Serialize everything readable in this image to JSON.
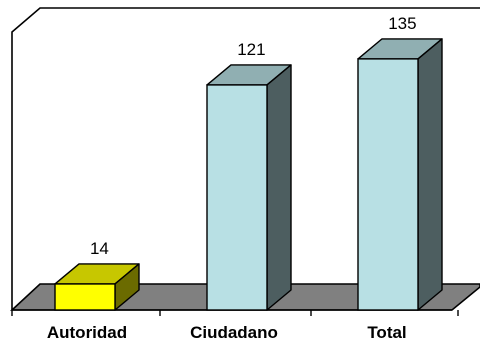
{
  "chart_data": {
    "type": "bar",
    "three_d": true,
    "categories": [
      "Autoridad",
      "Ciudadano",
      "Total"
    ],
    "values": [
      14,
      121,
      135
    ],
    "data_labels": [
      "14",
      "121",
      "135"
    ],
    "title": "",
    "xlabel": "",
    "ylabel": "",
    "ylim": [
      0,
      150
    ],
    "grid": false,
    "legend": "none",
    "colors": {
      "bars": [
        "#ffff00",
        "#b8e0e4",
        "#b8e0e4"
      ],
      "floor": "#808080",
      "wall": "#ffffff",
      "outline": "#000000"
    }
  }
}
